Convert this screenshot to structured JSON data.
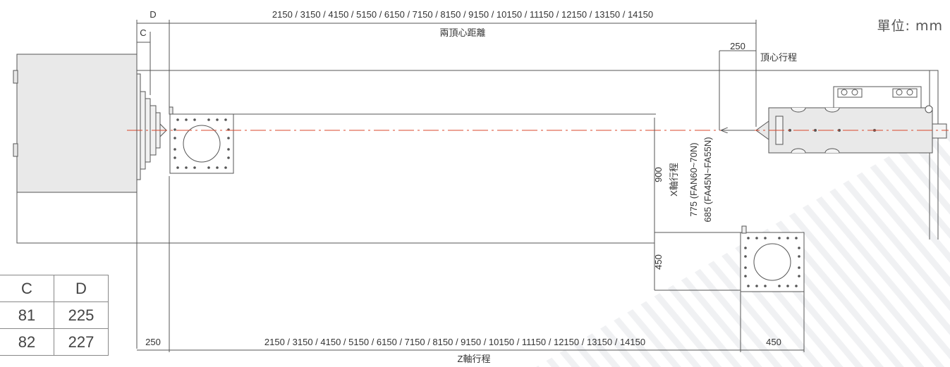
{
  "unit_label": "單位: mm",
  "dims": {
    "top_lengths": "2150 / 3150 / 4150 / 5150 / 6150 / 7150 / 8150 / 9150 / 10150 / 11150 / 12150 / 13150 / 14150",
    "top_caption": "兩頂心距離",
    "d_label": "D",
    "c_label": "C",
    "tailstock_value": "250",
    "tailstock_caption": "頂心行程",
    "x_900": "900",
    "x_450": "450",
    "x_caption": "X軸行程",
    "x_775": "775 (FAN60~70N)",
    "x_685": "685 (FA45N~FA55N)",
    "bottom_left": "250",
    "bottom_lengths": "2150 / 3150 / 4150 / 5150 / 6150 / 7150 / 8150 / 9150 / 10150 / 11150 / 12150 / 13150 / 14150",
    "bottom_right": "450",
    "z_caption": "Z軸行程"
  },
  "table": {
    "headers": [
      "C",
      "D"
    ],
    "rows": [
      [
        "81",
        "225"
      ],
      [
        "82",
        "227"
      ]
    ]
  },
  "colors": {
    "line": "#555555",
    "centerline": "#d9472b",
    "fill": "#e8e8e8",
    "stripe": "#f1f2f4"
  }
}
